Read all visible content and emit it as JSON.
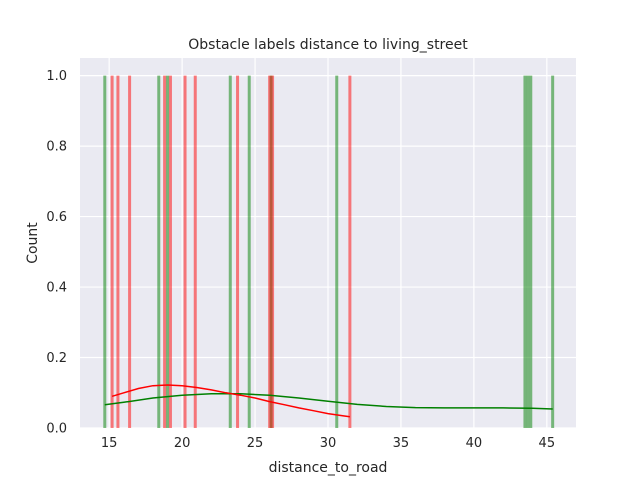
{
  "chart_data": {
    "type": "bar",
    "title": "Obstacle labels distance to living_street",
    "xlabel": "distance_to_road",
    "ylabel": "Count",
    "xlim": [
      13,
      47
    ],
    "ylim": [
      0,
      1.05
    ],
    "xticks": [
      15,
      20,
      25,
      30,
      35,
      40,
      45
    ],
    "yticks": [
      0.0,
      0.2,
      0.4,
      0.6,
      0.8,
      1.0
    ],
    "xtick_labels": [
      "15",
      "20",
      "25",
      "30",
      "35",
      "40",
      "45"
    ],
    "ytick_labels": [
      "0.0",
      "0.2",
      "0.4",
      "0.6",
      "0.8",
      "1.0"
    ],
    "grid": true,
    "background": "#eaeaf2",
    "series": [
      {
        "color": "#008000",
        "bar_x": [
          14.7,
          18.4,
          19.0,
          23.3,
          24.6,
          26.1,
          30.6,
          43.5,
          43.7,
          43.9,
          45.4
        ],
        "bar_values": [
          1,
          1,
          1,
          1,
          1,
          1,
          1,
          1,
          1,
          1,
          1
        ],
        "kde_x": [
          14.7,
          16,
          18,
          20,
          22,
          24,
          26,
          28,
          30,
          32,
          34,
          36,
          38,
          40,
          42,
          44,
          45.4
        ],
        "kde_y": [
          0.066,
          0.073,
          0.085,
          0.093,
          0.097,
          0.097,
          0.093,
          0.085,
          0.076,
          0.067,
          0.061,
          0.058,
          0.057,
          0.057,
          0.057,
          0.056,
          0.054
        ]
      },
      {
        "color": "#ff0000",
        "bar_x": [
          15.2,
          15.6,
          16.4,
          18.8,
          19.2,
          20.2,
          20.9,
          23.8,
          26.0,
          26.2,
          31.5
        ],
        "bar_values": [
          1,
          1,
          1,
          1,
          1,
          1,
          1,
          1,
          1,
          1,
          1
        ],
        "kde_x": [
          15.2,
          16,
          17,
          18,
          19,
          20,
          21,
          22,
          23,
          24,
          25,
          26,
          27,
          28,
          29,
          30,
          31,
          31.5
        ],
        "kde_y": [
          0.09,
          0.1,
          0.112,
          0.12,
          0.122,
          0.12,
          0.115,
          0.108,
          0.1,
          0.093,
          0.085,
          0.075,
          0.066,
          0.057,
          0.049,
          0.041,
          0.035,
          0.032
        ]
      }
    ]
  }
}
